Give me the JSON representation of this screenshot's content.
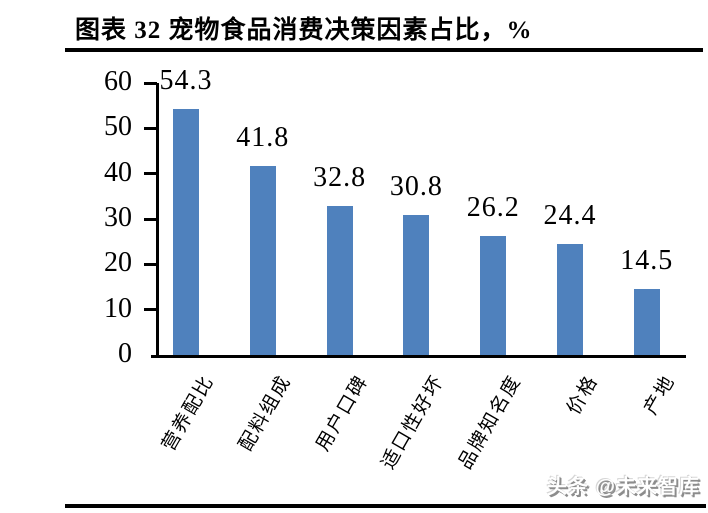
{
  "header": {
    "title": "图表 32 宠物食品消费决策因素占比，%"
  },
  "chart_data": {
    "type": "bar",
    "title": "图表 32 宠物食品消费决策因素占比，%",
    "categories": [
      "营养配比",
      "配料组成",
      "用户口碑",
      "适口性好坏",
      "品牌知名度",
      "价格",
      "产地"
    ],
    "values": [
      54.3,
      41.8,
      32.8,
      30.8,
      26.2,
      24.4,
      14.5
    ],
    "ylabel": "",
    "xlabel": "",
    "ylim": [
      0,
      60
    ],
    "ytick_step": 10,
    "ytick_labels": [
      "60",
      "50",
      "40",
      "30",
      "20",
      "10",
      "0"
    ],
    "grid": false,
    "legend": "none",
    "value_labels_shown": true,
    "bar_color": "#4F81BD"
  },
  "footer": {
    "watermark": "头条 @未来智库"
  },
  "colors": {
    "bar": "#4F81BD",
    "axis": "#000000",
    "rule": "#000000",
    "watermark_shadow": "#8c8c8c",
    "background": "#ffffff"
  }
}
